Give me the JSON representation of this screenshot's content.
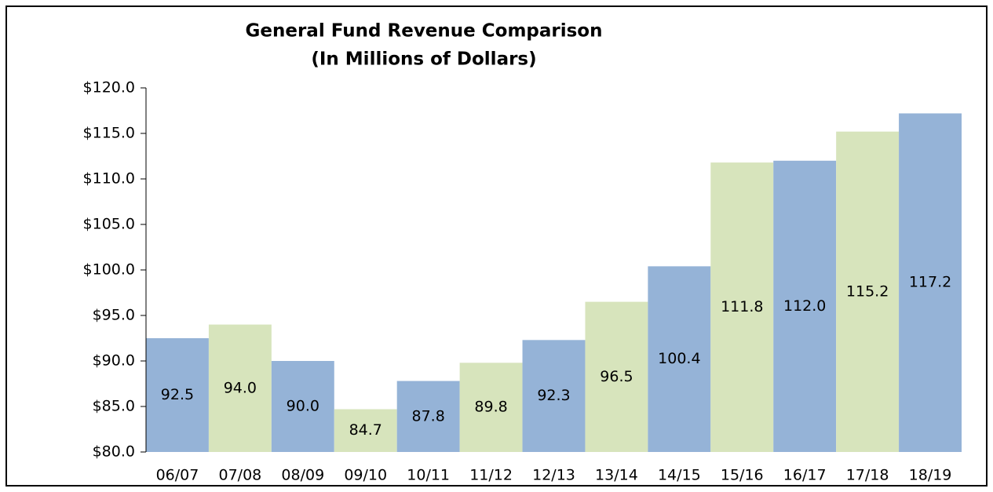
{
  "chart_data": {
    "type": "bar",
    "title": "General Fund Revenue Comparison",
    "subtitle": "(In Millions of Dollars)",
    "categories": [
      "06/07",
      "07/08",
      "08/09",
      "09/10",
      "10/11",
      "11/12",
      "12/13",
      "13/14",
      "14/15",
      "15/16",
      "16/17",
      "17/18",
      "18/19"
    ],
    "values": [
      92.5,
      94.0,
      90.0,
      84.7,
      87.8,
      89.8,
      92.3,
      96.5,
      100.4,
      111.8,
      112.0,
      115.2,
      117.2
    ],
    "value_labels": [
      "92.5",
      "94.0",
      "90.0",
      "84.7",
      "87.8",
      "89.8",
      "92.3",
      "96.5",
      "100.4",
      "111.8",
      "112.0",
      "115.2",
      "117.2"
    ],
    "colors": [
      "#95b3d7",
      "#d7e4bc",
      "#95b3d7",
      "#d7e4bc",
      "#95b3d7",
      "#d7e4bc",
      "#95b3d7",
      "#d7e4bc",
      "#95b3d7",
      "#d7e4bc",
      "#95b3d7",
      "#d7e4bc",
      "#95b3d7"
    ],
    "ylim": [
      80,
      120
    ],
    "yticks": [
      {
        "value": 80,
        "label": "$80.0"
      },
      {
        "value": 85,
        "label": "$85.0"
      },
      {
        "value": 90,
        "label": "$90.0"
      },
      {
        "value": 95,
        "label": "$95.0"
      },
      {
        "value": 100,
        "label": "$100.0"
      },
      {
        "value": 105,
        "label": "$105.0"
      },
      {
        "value": 110,
        "label": "$110.0"
      },
      {
        "value": 115,
        "label": "$115.0"
      },
      {
        "value": 120,
        "label": "$120.0"
      }
    ],
    "grid": false
  }
}
